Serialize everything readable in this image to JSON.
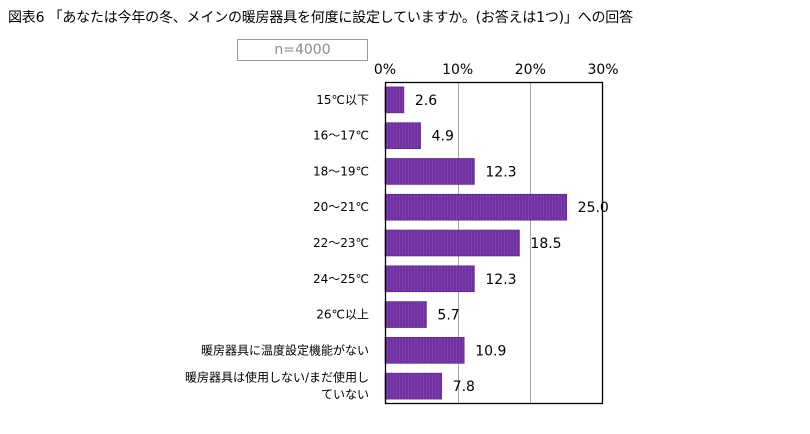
{
  "title": "図表6 「あなたは今年の冬、メインの暖房器具を何度に設定していますか。(お答えは1つ)」への回答",
  "sample_label": "n=4000",
  "colors": {
    "bar": "#7030A0",
    "bar_edge": "#5a1f88",
    "axis": "#000000",
    "grid": "#a6a6a6"
  },
  "chart_data": {
    "type": "bar",
    "orientation": "horizontal",
    "title": "図表6 「あなたは今年の冬、メインの暖房器具を何度に設定していますか。(お答えは1つ)」への回答",
    "xlabel": "",
    "ylabel": "",
    "xlim": [
      0,
      30
    ],
    "xticks": [
      0,
      10,
      20,
      30
    ],
    "xtick_labels": [
      "0%",
      "10%",
      "20%",
      "30%"
    ],
    "tick_position": "top",
    "grid": true,
    "legend": "none",
    "categories": [
      [
        "15℃以下"
      ],
      [
        "16～17℃"
      ],
      [
        "18～19℃"
      ],
      [
        "20～21℃"
      ],
      [
        "22～23℃"
      ],
      [
        "24～25℃"
      ],
      [
        "26℃以上"
      ],
      [
        "暖房器具に温度設定機能がない"
      ],
      [
        "暖房器具は使用しない/まだ使用し",
        "ていない"
      ]
    ],
    "values": [
      2.6,
      4.9,
      12.3,
      25.0,
      18.5,
      12.3,
      5.7,
      10.9,
      7.8
    ],
    "value_labels": [
      "2.6",
      "4.9",
      "12.3",
      "25.0",
      "18.5",
      "12.3",
      "5.7",
      "10.9",
      "7.8"
    ]
  }
}
